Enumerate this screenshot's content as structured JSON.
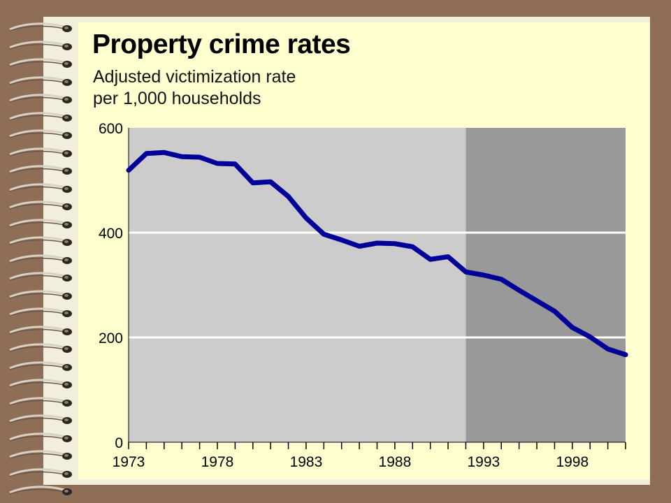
{
  "chart_data": {
    "type": "line",
    "title": "Property crime rates",
    "subtitle": [
      "Adjusted victimization rate",
      "per 1,000 households"
    ],
    "xlabel": "",
    "ylabel": "",
    "xlim": [
      1973,
      2001
    ],
    "ylim": [
      0,
      600
    ],
    "yticks": [
      0,
      200,
      400,
      600
    ],
    "xtick_labels": [
      "1973",
      "1978",
      "1983",
      "1988",
      "1993",
      "1998"
    ],
    "x_minor_ticks": [
      1973,
      1974,
      1975,
      1976,
      1977,
      1978,
      1979,
      1980,
      1981,
      1982,
      1983,
      1984,
      1985,
      1986,
      1987,
      1988,
      1989,
      1990,
      1991,
      1992,
      1993,
      1994,
      1995,
      1996,
      1997,
      1998,
      1999,
      2000,
      2001
    ],
    "grid": "horizontal",
    "shaded_regions": [
      {
        "from": 1973,
        "to": 1992,
        "color": "#cccccc"
      },
      {
        "from": 1992,
        "to": 2001,
        "color": "#999999"
      }
    ],
    "series": [
      {
        "color": "#000099",
        "x": [
          1973,
          1974,
          1975,
          1976,
          1977,
          1978,
          1979,
          1980,
          1981,
          1982,
          1983,
          1984,
          1985,
          1986,
          1987,
          1988,
          1989,
          1990,
          1991,
          1992,
          1993,
          1994,
          1995,
          1996,
          1997,
          1998,
          1999,
          2000,
          2001
        ],
        "values": [
          519,
          551,
          553,
          545,
          544,
          532,
          531,
          495,
          497,
          469,
          428,
          397,
          386,
          374,
          380,
          379,
          373,
          349,
          354,
          325,
          319,
          311,
          290,
          270,
          250,
          219,
          201,
          178,
          167
        ]
      }
    ]
  }
}
